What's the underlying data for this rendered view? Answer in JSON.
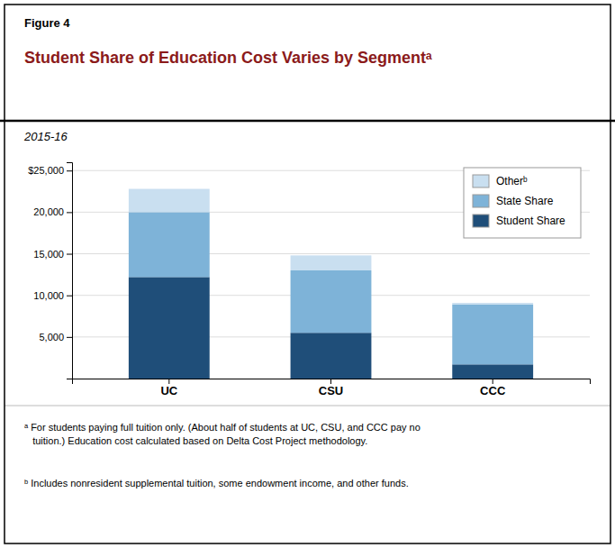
{
  "chart_data": {
    "type": "bar",
    "stacked": true,
    "title": "Student Share of Education Cost Varies by Segmentᵃ",
    "subtitle": "2015-16",
    "annotations": [
      "Figure 4",
      "ᵃ For students paying full tuition only. (About half of students at UC, CSU, and CCC pay no\n   tuition.) Education cost calculated based on Delta Cost Project methodology.",
      "ᵇ Includes nonresident supplemental tuition, some endowment income, and other funds."
    ],
    "categories": [
      "UC",
      "CSU",
      "CCC"
    ],
    "series": [
      {
        "name": "Student Share",
        "color": "#1f4e79",
        "values": [
          12200,
          5500,
          1700
        ]
      },
      {
        "name": "State Share",
        "color": "#7eb3d8",
        "values": [
          7800,
          7500,
          7200
        ]
      },
      {
        "name": "Otherᵇ",
        "color": "#c9dff0",
        "values": [
          2800,
          1800,
          200
        ]
      }
    ],
    "ylim": [
      0,
      26000
    ],
    "yticks": [
      {
        "value": 5000,
        "label": "5,000"
      },
      {
        "value": 10000,
        "label": "10,000"
      },
      {
        "value": 15000,
        "label": "15,000"
      },
      {
        "value": 20000,
        "label": "20,000"
      },
      {
        "value": 25000,
        "label": "$25,000"
      }
    ],
    "grid": true,
    "legend": "top-right"
  }
}
